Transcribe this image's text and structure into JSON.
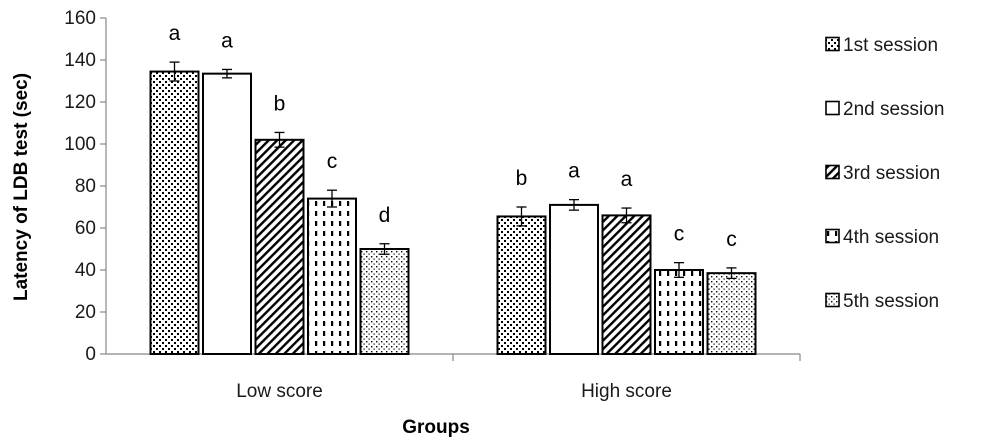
{
  "chart_data": {
    "type": "bar",
    "title": "",
    "xlabel": "Groups",
    "ylabel": "Latency of LDB test (sec)",
    "ylim": [
      0,
      160
    ],
    "yticks": [
      "0",
      "20",
      "40",
      "60",
      "80",
      "100",
      "120",
      "140",
      "160"
    ],
    "categories": [
      "Low score",
      "High score"
    ],
    "grid": false,
    "legend_position": "right",
    "series": [
      {
        "name": "1st session",
        "pattern": "dots",
        "values": [
          134.5,
          65.5
        ],
        "errors": [
          4.5,
          4.5
        ],
        "letters": [
          "a",
          "b"
        ]
      },
      {
        "name": "2nd session",
        "pattern": "plain",
        "values": [
          133.5,
          71.0
        ],
        "errors": [
          2.0,
          2.5
        ],
        "letters": [
          "a",
          "a"
        ]
      },
      {
        "name": "3rd session",
        "pattern": "diagonal",
        "values": [
          102.0,
          66.0
        ],
        "errors": [
          3.5,
          3.5
        ],
        "letters": [
          "b",
          "a"
        ]
      },
      {
        "name": "4th session",
        "pattern": "dashes",
        "values": [
          74.0,
          40.0
        ],
        "errors": [
          4.0,
          3.5
        ],
        "letters": [
          "c",
          "c"
        ]
      },
      {
        "name": "5th session",
        "pattern": "fine-dots",
        "values": [
          50.0,
          38.5
        ],
        "errors": [
          2.5,
          2.5
        ],
        "letters": [
          "d",
          "c"
        ]
      }
    ]
  }
}
